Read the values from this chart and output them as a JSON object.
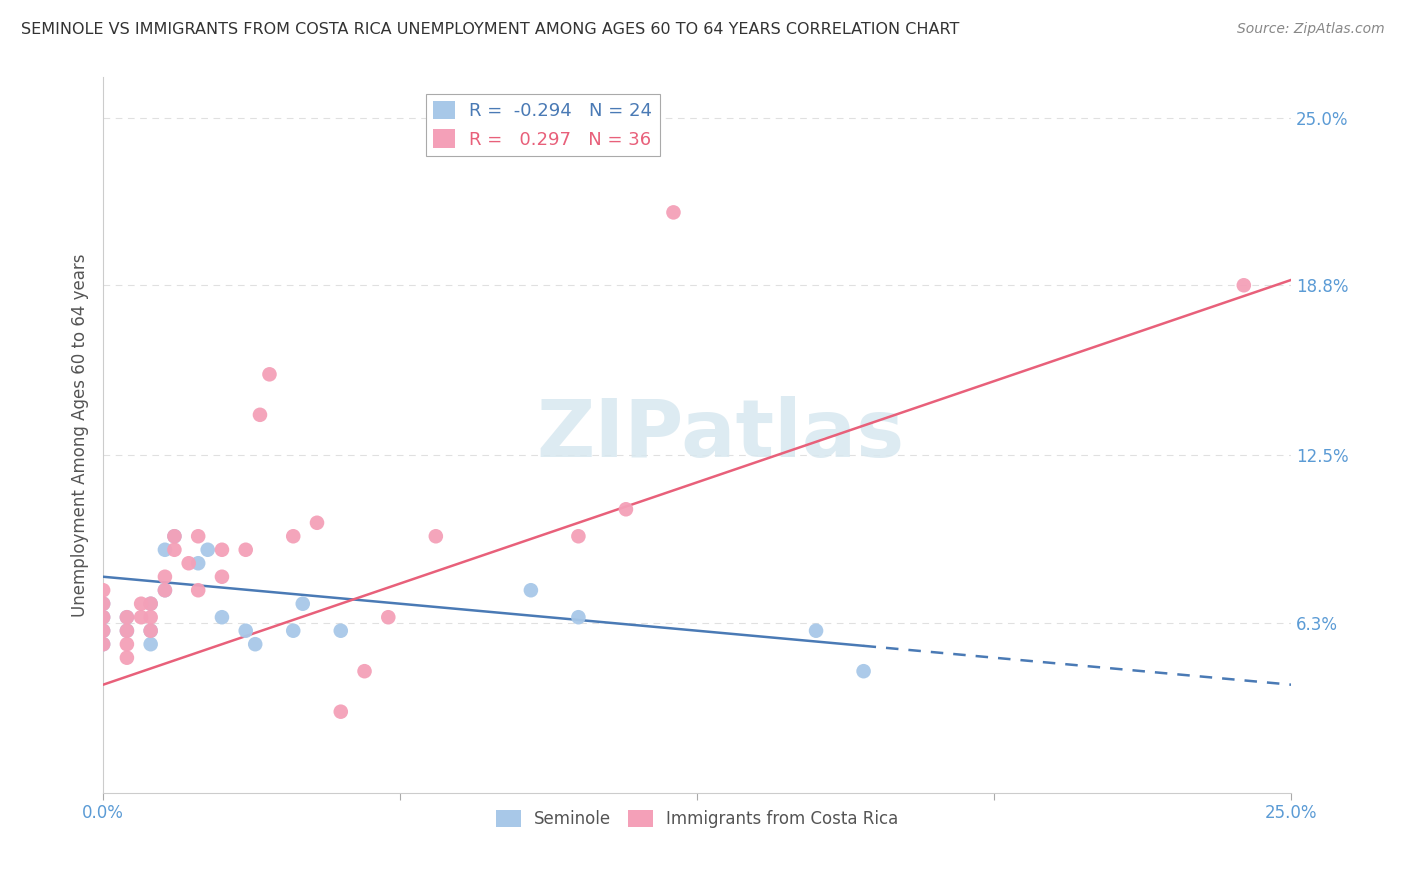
{
  "title": "SEMINOLE VS IMMIGRANTS FROM COSTA RICA UNEMPLOYMENT AMONG AGES 60 TO 64 YEARS CORRELATION CHART",
  "source": "Source: ZipAtlas.com",
  "ylabel": "Unemployment Among Ages 60 to 64 years",
  "xlim": [
    0.0,
    0.25
  ],
  "ylim": [
    0.0,
    0.265
  ],
  "yticks": [
    0.0,
    0.063,
    0.125,
    0.188,
    0.25
  ],
  "ytick_labels": [
    "",
    "6.3%",
    "12.5%",
    "18.8%",
    "25.0%"
  ],
  "xticks": [
    0.0,
    0.0625,
    0.125,
    0.1875,
    0.25
  ],
  "xtick_labels": [
    "0.0%",
    "",
    "",
    "",
    "25.0%"
  ],
  "grid_color": "#e0e0e0",
  "background_color": "#ffffff",
  "seminole_color": "#a8c8e8",
  "costa_rica_color": "#f4a0b8",
  "seminole_line_color": "#4a7ab5",
  "costa_rica_line_color": "#e8607a",
  "legend_R1": "-0.294",
  "legend_N1": "24",
  "legend_R2": "0.297",
  "legend_N2": "36",
  "watermark": "ZIPatlas",
  "seminole_x": [
    0.0,
    0.0,
    0.0,
    0.0,
    0.005,
    0.005,
    0.01,
    0.01,
    0.01,
    0.013,
    0.013,
    0.015,
    0.02,
    0.022,
    0.025,
    0.03,
    0.032,
    0.04,
    0.042,
    0.05,
    0.09,
    0.1,
    0.15,
    0.16
  ],
  "seminole_y": [
    0.055,
    0.06,
    0.065,
    0.07,
    0.06,
    0.065,
    0.055,
    0.06,
    0.07,
    0.075,
    0.09,
    0.095,
    0.085,
    0.09,
    0.065,
    0.06,
    0.055,
    0.06,
    0.07,
    0.06,
    0.075,
    0.065,
    0.06,
    0.045
  ],
  "costa_rica_x": [
    0.0,
    0.0,
    0.0,
    0.0,
    0.0,
    0.005,
    0.005,
    0.005,
    0.005,
    0.008,
    0.008,
    0.01,
    0.01,
    0.01,
    0.013,
    0.013,
    0.015,
    0.015,
    0.018,
    0.02,
    0.02,
    0.025,
    0.025,
    0.03,
    0.033,
    0.035,
    0.04,
    0.045,
    0.05,
    0.055,
    0.06,
    0.07,
    0.1,
    0.11,
    0.12,
    0.24
  ],
  "costa_rica_y": [
    0.055,
    0.06,
    0.065,
    0.07,
    0.075,
    0.05,
    0.055,
    0.06,
    0.065,
    0.065,
    0.07,
    0.06,
    0.065,
    0.07,
    0.075,
    0.08,
    0.09,
    0.095,
    0.085,
    0.075,
    0.095,
    0.08,
    0.09,
    0.09,
    0.14,
    0.155,
    0.095,
    0.1,
    0.03,
    0.045,
    0.065,
    0.095,
    0.095,
    0.105,
    0.215,
    0.188
  ]
}
